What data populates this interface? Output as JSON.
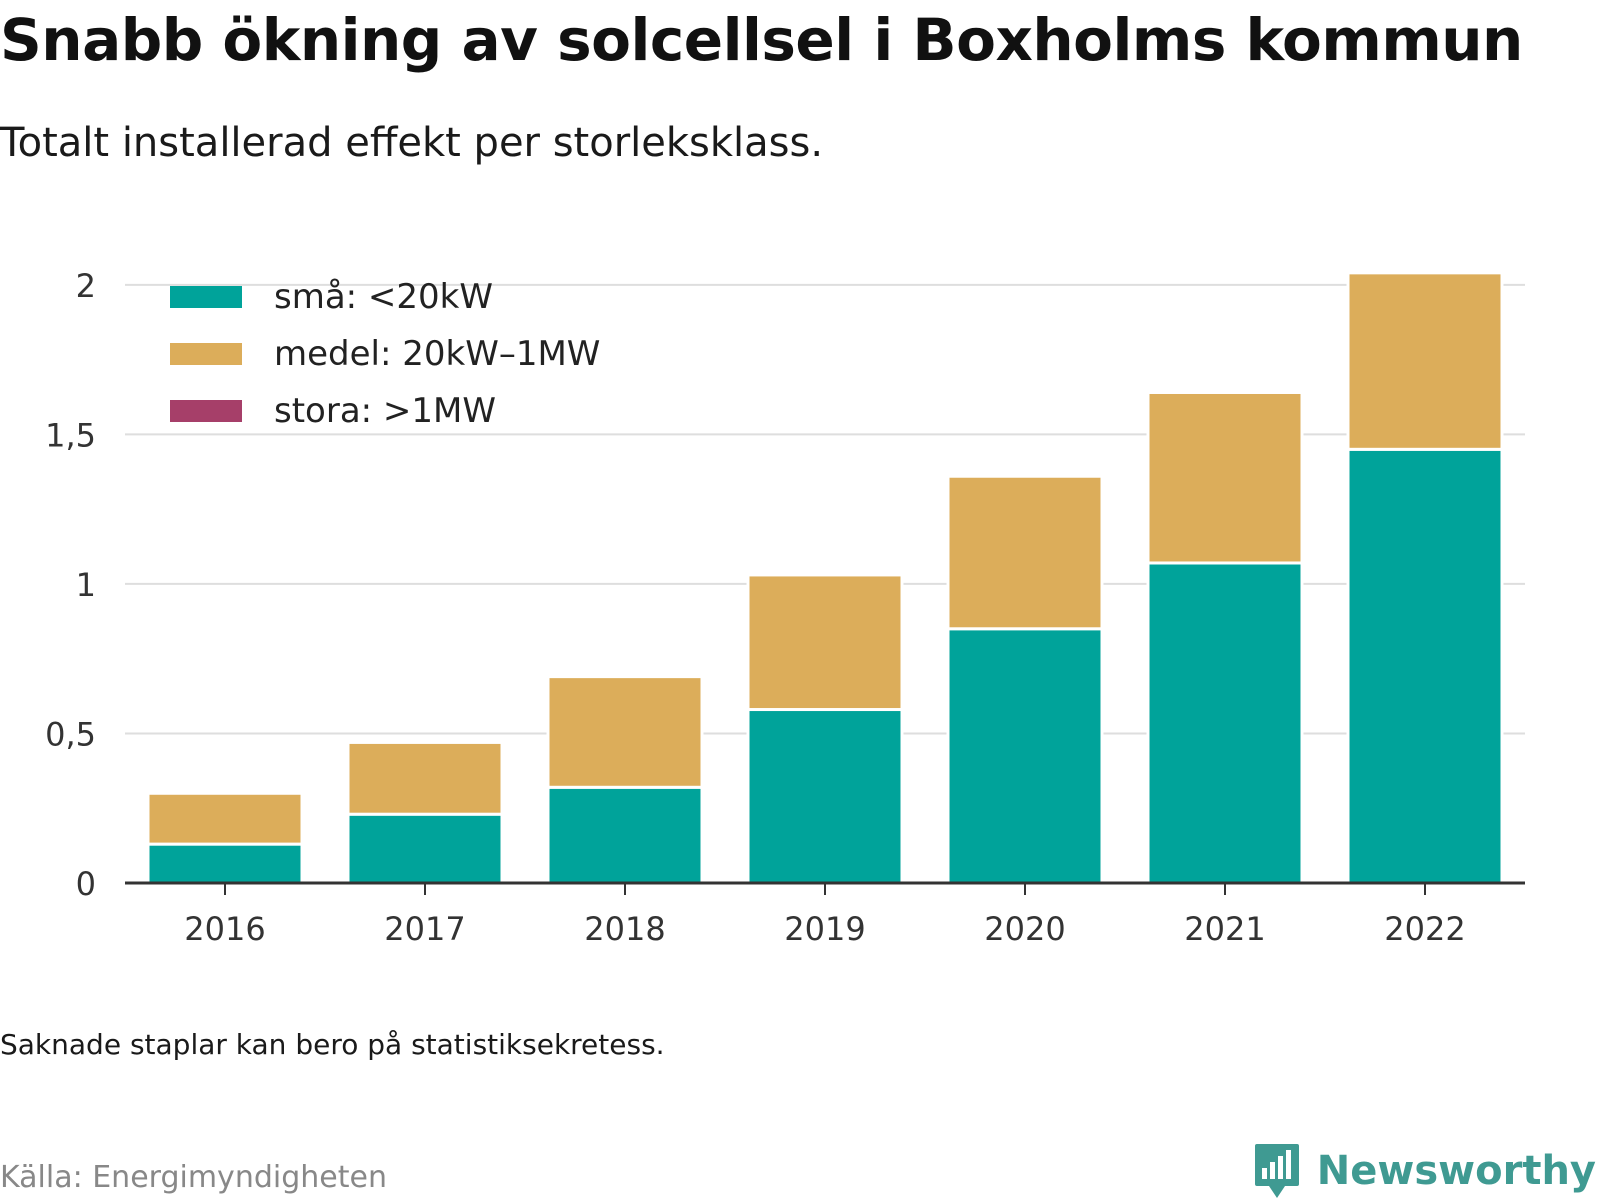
{
  "header": {
    "title": "Snabb ökning av solcellsel i Boxholms kommun",
    "subtitle": "Totalt installerad effekt per storleksklass."
  },
  "legend": [
    {
      "label": "små: <20kW",
      "color": "#00a39a"
    },
    {
      "label": "medel: 20kW–1MW",
      "color": "#dcad5a"
    },
    {
      "label": "stora: >1MW",
      "color": "#a63f69"
    }
  ],
  "chart_data": {
    "type": "bar",
    "stacked": true,
    "categories": [
      "2016",
      "2017",
      "2018",
      "2019",
      "2020",
      "2021",
      "2022"
    ],
    "series": [
      {
        "name": "små: <20kW",
        "color": "#00a39a",
        "values": [
          0.13,
          0.23,
          0.32,
          0.58,
          0.85,
          1.07,
          1.45
        ]
      },
      {
        "name": "medel: 20kW–1MW",
        "color": "#dcad5a",
        "values": [
          0.17,
          0.24,
          0.37,
          0.45,
          0.51,
          0.57,
          0.59
        ]
      },
      {
        "name": "stora: >1MW",
        "color": "#a63f69",
        "values": [
          0,
          0,
          0,
          0,
          0,
          0,
          0
        ]
      }
    ],
    "ylim": [
      0,
      2.2
    ],
    "yticks": [
      0,
      0.5,
      1,
      1.5,
      2
    ],
    "ytick_labels": [
      "0",
      "0,5",
      "1",
      "1,5",
      "2"
    ],
    "grid": true,
    "legend_position": "top-left"
  },
  "footer": {
    "note": "Saknade staplar kan bero på statistiksekretess.",
    "source": "Källa: Energimyndigheten",
    "brand": "Newsworthy"
  }
}
